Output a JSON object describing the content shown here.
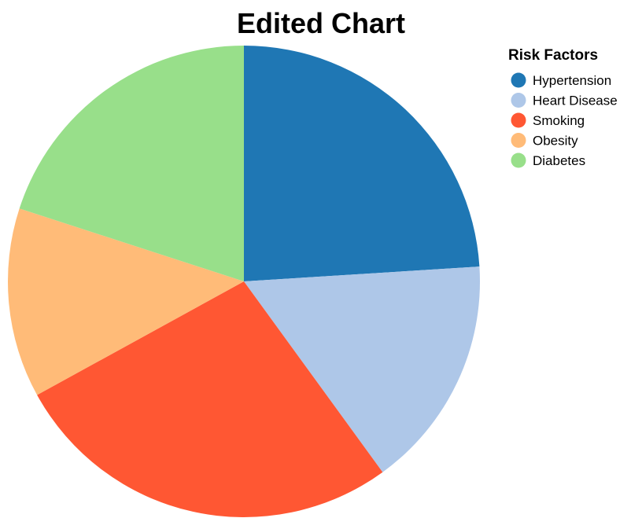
{
  "chart_data": {
    "type": "pie",
    "title": "Edited Chart",
    "legend_title": "Risk Factors",
    "legend_position": "top-right",
    "start_angle_deg": 0,
    "direction": "clockwise",
    "slices": [
      {
        "label": "Hypertension",
        "value": 24,
        "color": "#1f77b4"
      },
      {
        "label": "Heart Disease",
        "value": 16,
        "color": "#aec7e8"
      },
      {
        "label": "Smoking",
        "value": 27,
        "color": "#ff5733"
      },
      {
        "label": "Obesity",
        "value": 13,
        "color": "#ffbb78"
      },
      {
        "label": "Diabetes",
        "value": 20,
        "color": "#98df8a"
      }
    ]
  }
}
